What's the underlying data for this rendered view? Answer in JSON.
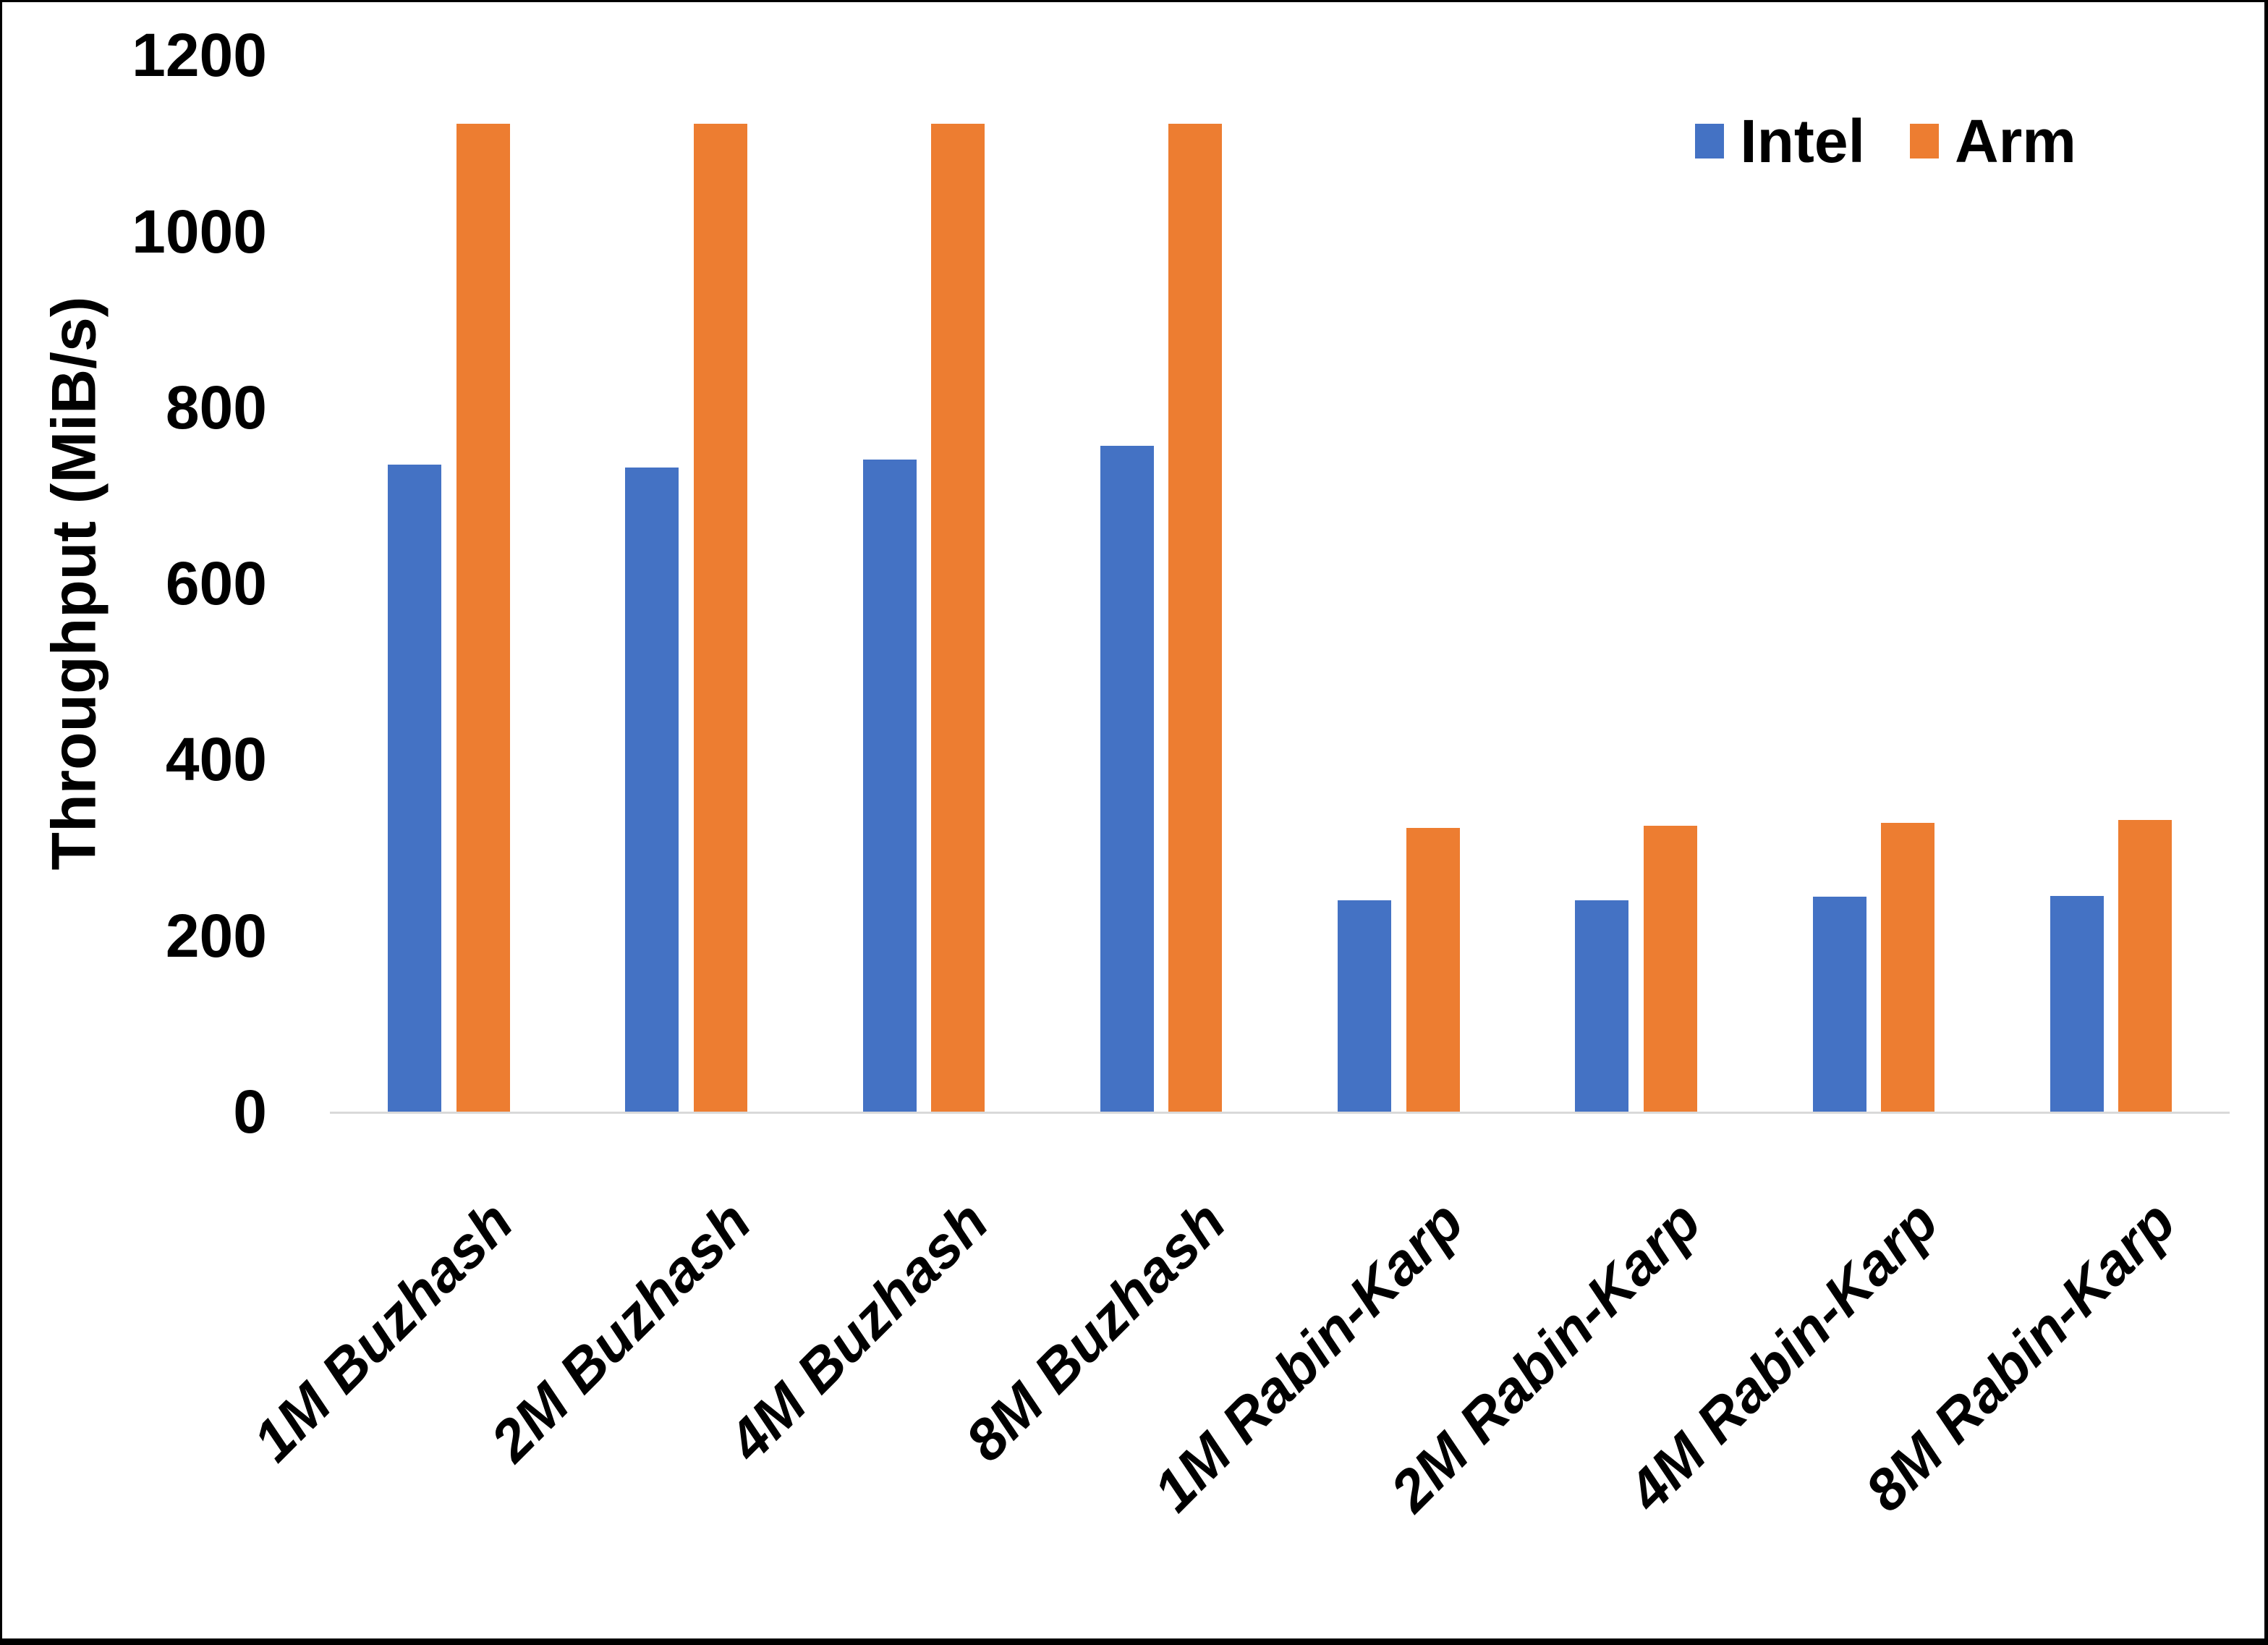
{
  "chart_data": {
    "type": "bar",
    "title": "",
    "xlabel": "",
    "ylabel": "Throughput (MiB/s)",
    "ylim": [
      0,
      1200
    ],
    "yticks": [
      0,
      200,
      400,
      600,
      800,
      1000,
      1200
    ],
    "grid": false,
    "legend_position": "top-right",
    "axis_line_color": "#D9D9D9",
    "categories": [
      "1M Buzhash",
      "2M Buzhash",
      "4M Buzhash",
      "8M Buzhash",
      "1M Rabin-Karp",
      "2M Rabin-Karp",
      "4M Rabin-Karp",
      "8M Rabin-Karp"
    ],
    "series": [
      {
        "name": "Intel",
        "color": "#4472C4",
        "values": [
          735,
          732,
          741,
          756,
          240,
          240,
          244,
          245
        ]
      },
      {
        "name": "Arm",
        "color": "#ED7D31",
        "values": [
          1122,
          1122,
          1122,
          1122,
          322,
          325,
          328,
          331
        ]
      }
    ]
  }
}
